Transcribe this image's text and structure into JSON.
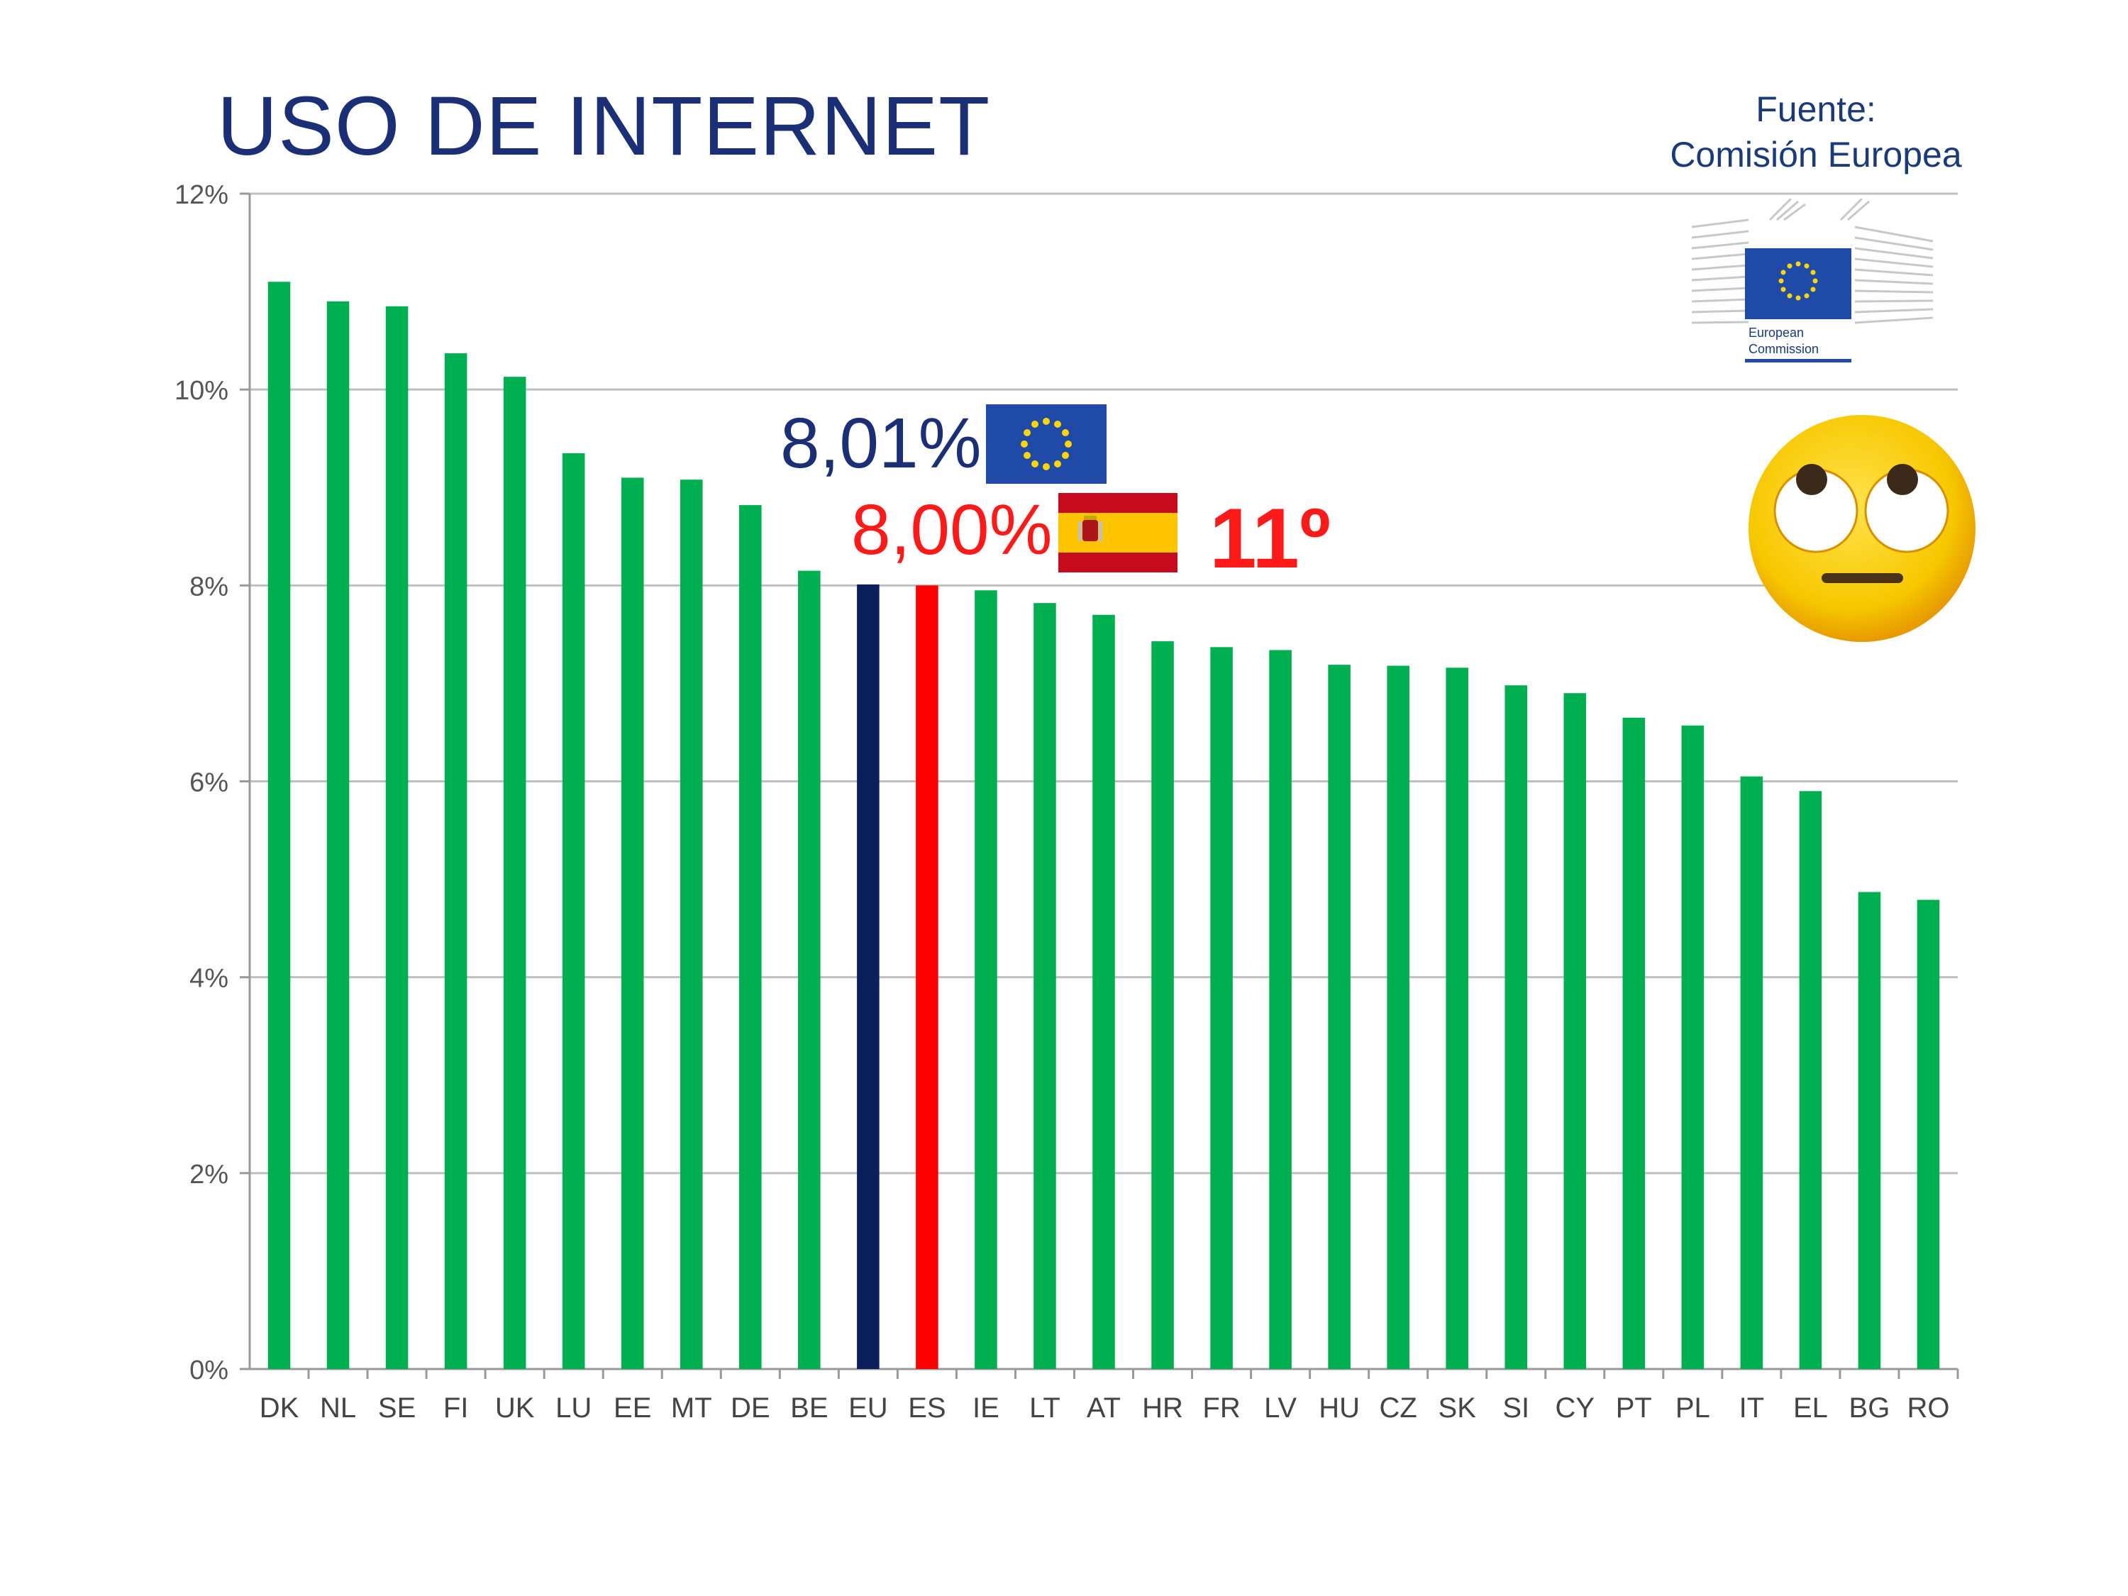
{
  "title": "USO DE INTERNET",
  "source": {
    "line1": "Fuente:",
    "line2": "Comisión Europea"
  },
  "logo": {
    "line1": "European",
    "line2": "Commission",
    "icon": "eu-flag-icon"
  },
  "annotations": {
    "eu_value": "8,01%",
    "es_value": "8,00%",
    "es_rank": "11º"
  },
  "colors": {
    "default_bar": "#00b050",
    "eu_bar": "#0a1f5c",
    "es_bar": "#ff0000",
    "grid": "#bfbfbf",
    "title": "#1a2f75"
  },
  "chart_data": {
    "type": "bar",
    "title": "USO DE INTERNET",
    "xlabel": "",
    "ylabel": "",
    "ylim": [
      0,
      12
    ],
    "yticks": [
      0,
      2,
      4,
      6,
      8,
      10,
      12
    ],
    "ytick_labels": [
      "0%",
      "2%",
      "4%",
      "6%",
      "8%",
      "10%",
      "12%"
    ],
    "grid": true,
    "categories": [
      "DK",
      "NL",
      "SE",
      "FI",
      "UK",
      "LU",
      "EE",
      "MT",
      "DE",
      "BE",
      "EU",
      "ES",
      "IE",
      "LT",
      "AT",
      "HR",
      "FR",
      "LV",
      "HU",
      "CZ",
      "SK",
      "SI",
      "CY",
      "PT",
      "PL",
      "IT",
      "EL",
      "BG",
      "RO"
    ],
    "values": [
      11.1,
      10.9,
      10.85,
      10.37,
      10.13,
      9.35,
      9.1,
      9.08,
      8.82,
      8.15,
      8.01,
      8.0,
      7.95,
      7.82,
      7.7,
      7.43,
      7.37,
      7.34,
      7.19,
      7.18,
      7.16,
      6.98,
      6.9,
      6.65,
      6.57,
      6.05,
      5.9,
      4.87,
      4.79
    ],
    "highlight": {
      "EU": "eu",
      "ES": "es"
    }
  }
}
